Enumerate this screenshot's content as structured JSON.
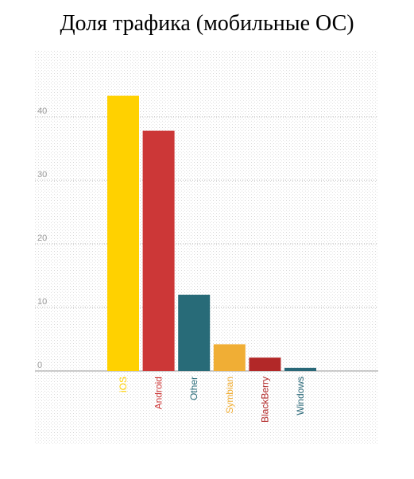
{
  "chart_data": {
    "type": "bar",
    "title": "Доля трафика (мобильные ОС)",
    "categories": [
      "iOS",
      "Android",
      "Other",
      "Symbian",
      "BlackBerry",
      "Windows"
    ],
    "values": [
      43.3,
      37.8,
      12.0,
      4.2,
      2.1,
      0.5
    ],
    "colors": [
      "#FFD100",
      "#CC3737",
      "#286B78",
      "#F0AE35",
      "#B22828",
      "#2A6878"
    ],
    "ylim": [
      0,
      50
    ],
    "yticks": [
      0,
      10,
      20,
      30,
      40
    ],
    "grid": true,
    "xlabel": "",
    "ylabel": ""
  }
}
